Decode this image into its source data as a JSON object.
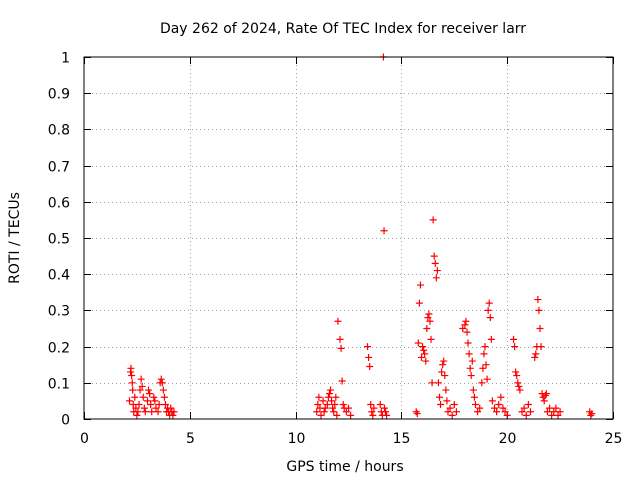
{
  "chart_data": {
    "type": "scatter",
    "title": "Day 262 of 2024, Rate Of TEC Index for receiver larr",
    "xlabel": "GPS time / hours",
    "ylabel": "ROTI / TECUs",
    "xlim": [
      0,
      25
    ],
    "ylim": [
      0,
      1
    ],
    "grid": true,
    "x_ticks": [
      0,
      5,
      10,
      15,
      20,
      25
    ],
    "x_tick_labels": [
      "0",
      "5",
      "10",
      "15",
      "20",
      "25"
    ],
    "y_ticks": [
      0,
      0.1,
      0.2,
      0.3,
      0.4,
      0.5,
      0.6,
      0.7,
      0.8,
      0.9,
      1
    ],
    "y_tick_labels": [
      "0",
      "0.1",
      "0.2",
      "0.3",
      "0.4",
      "0.5",
      "0.6",
      "0.7",
      "0.8",
      "0.9",
      "1"
    ],
    "marker": "+",
    "series": [
      {
        "name": "ROTI",
        "color": "#ff0000",
        "points": [
          [
            2.15,
            0.05
          ],
          [
            2.2,
            0.13
          ],
          [
            2.22,
            0.14
          ],
          [
            2.25,
            0.12
          ],
          [
            2.28,
            0.1
          ],
          [
            2.3,
            0.08
          ],
          [
            2.33,
            0.04
          ],
          [
            2.35,
            0.02
          ],
          [
            2.4,
            0.06
          ],
          [
            2.45,
            0.03
          ],
          [
            2.5,
            0.01
          ],
          [
            2.55,
            0.02
          ],
          [
            2.6,
            0.04
          ],
          [
            2.65,
            0.08
          ],
          [
            2.7,
            0.11
          ],
          [
            2.75,
            0.09
          ],
          [
            2.8,
            0.06
          ],
          [
            2.85,
            0.03
          ],
          [
            2.9,
            0.02
          ],
          [
            3.0,
            0.05
          ],
          [
            3.05,
            0.08
          ],
          [
            3.1,
            0.07
          ],
          [
            3.15,
            0.04
          ],
          [
            3.2,
            0.02
          ],
          [
            3.3,
            0.06
          ],
          [
            3.35,
            0.05
          ],
          [
            3.4,
            0.03
          ],
          [
            3.5,
            0.02
          ],
          [
            3.55,
            0.04
          ],
          [
            3.6,
            0.1
          ],
          [
            3.65,
            0.11
          ],
          [
            3.7,
            0.1
          ],
          [
            3.75,
            0.08
          ],
          [
            3.8,
            0.06
          ],
          [
            3.85,
            0.04
          ],
          [
            3.9,
            0.02
          ],
          [
            3.95,
            0.03
          ],
          [
            4.0,
            0.02
          ],
          [
            4.05,
            0.01
          ],
          [
            4.1,
            0.03
          ],
          [
            4.15,
            0.02
          ],
          [
            4.2,
            0.01
          ],
          [
            4.25,
            0.02
          ],
          [
            11.0,
            0.02
          ],
          [
            11.05,
            0.04
          ],
          [
            11.1,
            0.06
          ],
          [
            11.15,
            0.03
          ],
          [
            11.2,
            0.01
          ],
          [
            11.3,
            0.05
          ],
          [
            11.35,
            0.02
          ],
          [
            11.4,
            0.03
          ],
          [
            11.5,
            0.04
          ],
          [
            11.55,
            0.06
          ],
          [
            11.6,
            0.07
          ],
          [
            11.65,
            0.08
          ],
          [
            11.7,
            0.05
          ],
          [
            11.75,
            0.03
          ],
          [
            11.8,
            0.02
          ],
          [
            11.85,
            0.04
          ],
          [
            11.9,
            0.06
          ],
          [
            11.95,
            0.01
          ],
          [
            12.0,
            0.27
          ],
          [
            12.1,
            0.22
          ],
          [
            12.15,
            0.195
          ],
          [
            12.2,
            0.105
          ],
          [
            12.25,
            0.04
          ],
          [
            12.3,
            0.03
          ],
          [
            12.4,
            0.02
          ],
          [
            12.5,
            0.03
          ],
          [
            12.6,
            0.01
          ],
          [
            13.4,
            0.2
          ],
          [
            13.45,
            0.17
          ],
          [
            13.5,
            0.145
          ],
          [
            13.55,
            0.04
          ],
          [
            13.6,
            0.02
          ],
          [
            13.65,
            0.01
          ],
          [
            13.7,
            0.03
          ],
          [
            14.0,
            0.04
          ],
          [
            14.05,
            0.02
          ],
          [
            14.1,
            0.01
          ],
          [
            14.15,
            1.0
          ],
          [
            14.18,
            0.52
          ],
          [
            14.2,
            0.03
          ],
          [
            14.25,
            0.02
          ],
          [
            14.3,
            0.01
          ],
          [
            15.7,
            0.02
          ],
          [
            15.75,
            0.015
          ],
          [
            15.8,
            0.21
          ],
          [
            15.85,
            0.32
          ],
          [
            15.9,
            0.37
          ],
          [
            15.95,
            0.17
          ],
          [
            16.0,
            0.2
          ],
          [
            16.05,
            0.19
          ],
          [
            16.1,
            0.18
          ],
          [
            16.15,
            0.16
          ],
          [
            16.2,
            0.25
          ],
          [
            16.25,
            0.28
          ],
          [
            16.3,
            0.29
          ],
          [
            16.35,
            0.27
          ],
          [
            16.4,
            0.22
          ],
          [
            16.45,
            0.1
          ],
          [
            16.5,
            0.55
          ],
          [
            16.55,
            0.45
          ],
          [
            16.6,
            0.43
          ],
          [
            16.65,
            0.39
          ],
          [
            16.7,
            0.41
          ],
          [
            16.75,
            0.1
          ],
          [
            16.8,
            0.06
          ],
          [
            16.85,
            0.04
          ],
          [
            16.9,
            0.13
          ],
          [
            16.95,
            0.15
          ],
          [
            17.0,
            0.16
          ],
          [
            17.05,
            0.12
          ],
          [
            17.1,
            0.08
          ],
          [
            17.15,
            0.05
          ],
          [
            17.2,
            0.02
          ],
          [
            17.3,
            0.03
          ],
          [
            17.4,
            0.01
          ],
          [
            17.5,
            0.04
          ],
          [
            17.6,
            0.02
          ],
          [
            17.9,
            0.25
          ],
          [
            18.0,
            0.26
          ],
          [
            18.05,
            0.27
          ],
          [
            18.1,
            0.24
          ],
          [
            18.15,
            0.21
          ],
          [
            18.2,
            0.18
          ],
          [
            18.25,
            0.14
          ],
          [
            18.3,
            0.12
          ],
          [
            18.35,
            0.16
          ],
          [
            18.4,
            0.08
          ],
          [
            18.45,
            0.06
          ],
          [
            18.5,
            0.04
          ],
          [
            18.6,
            0.02
          ],
          [
            18.7,
            0.03
          ],
          [
            18.8,
            0.1
          ],
          [
            18.85,
            0.14
          ],
          [
            18.9,
            0.18
          ],
          [
            18.95,
            0.2
          ],
          [
            19.0,
            0.15
          ],
          [
            19.05,
            0.11
          ],
          [
            19.1,
            0.3
          ],
          [
            19.15,
            0.32
          ],
          [
            19.2,
            0.28
          ],
          [
            19.25,
            0.22
          ],
          [
            19.3,
            0.05
          ],
          [
            19.4,
            0.03
          ],
          [
            19.5,
            0.02
          ],
          [
            19.6,
            0.04
          ],
          [
            19.7,
            0.06
          ],
          [
            19.8,
            0.03
          ],
          [
            19.9,
            0.02
          ],
          [
            20.0,
            0.01
          ],
          [
            20.3,
            0.22
          ],
          [
            20.35,
            0.2
          ],
          [
            20.4,
            0.13
          ],
          [
            20.45,
            0.12
          ],
          [
            20.5,
            0.1
          ],
          [
            20.55,
            0.09
          ],
          [
            20.6,
            0.08
          ],
          [
            20.7,
            0.02
          ],
          [
            20.8,
            0.03
          ],
          [
            20.9,
            0.01
          ],
          [
            21.0,
            0.04
          ],
          [
            21.1,
            0.02
          ],
          [
            21.3,
            0.17
          ],
          [
            21.35,
            0.18
          ],
          [
            21.4,
            0.2
          ],
          [
            21.45,
            0.33
          ],
          [
            21.5,
            0.3
          ],
          [
            21.55,
            0.25
          ],
          [
            21.6,
            0.2
          ],
          [
            21.65,
            0.07
          ],
          [
            21.7,
            0.06
          ],
          [
            21.75,
            0.05
          ],
          [
            21.8,
            0.065
          ],
          [
            21.85,
            0.07
          ],
          [
            21.9,
            0.02
          ],
          [
            22.0,
            0.03
          ],
          [
            22.1,
            0.01
          ],
          [
            22.2,
            0.02
          ],
          [
            22.3,
            0.03
          ],
          [
            22.4,
            0.01
          ],
          [
            22.5,
            0.02
          ],
          [
            23.9,
            0.02
          ],
          [
            23.95,
            0.01
          ],
          [
            24.0,
            0.015
          ]
        ]
      }
    ]
  }
}
